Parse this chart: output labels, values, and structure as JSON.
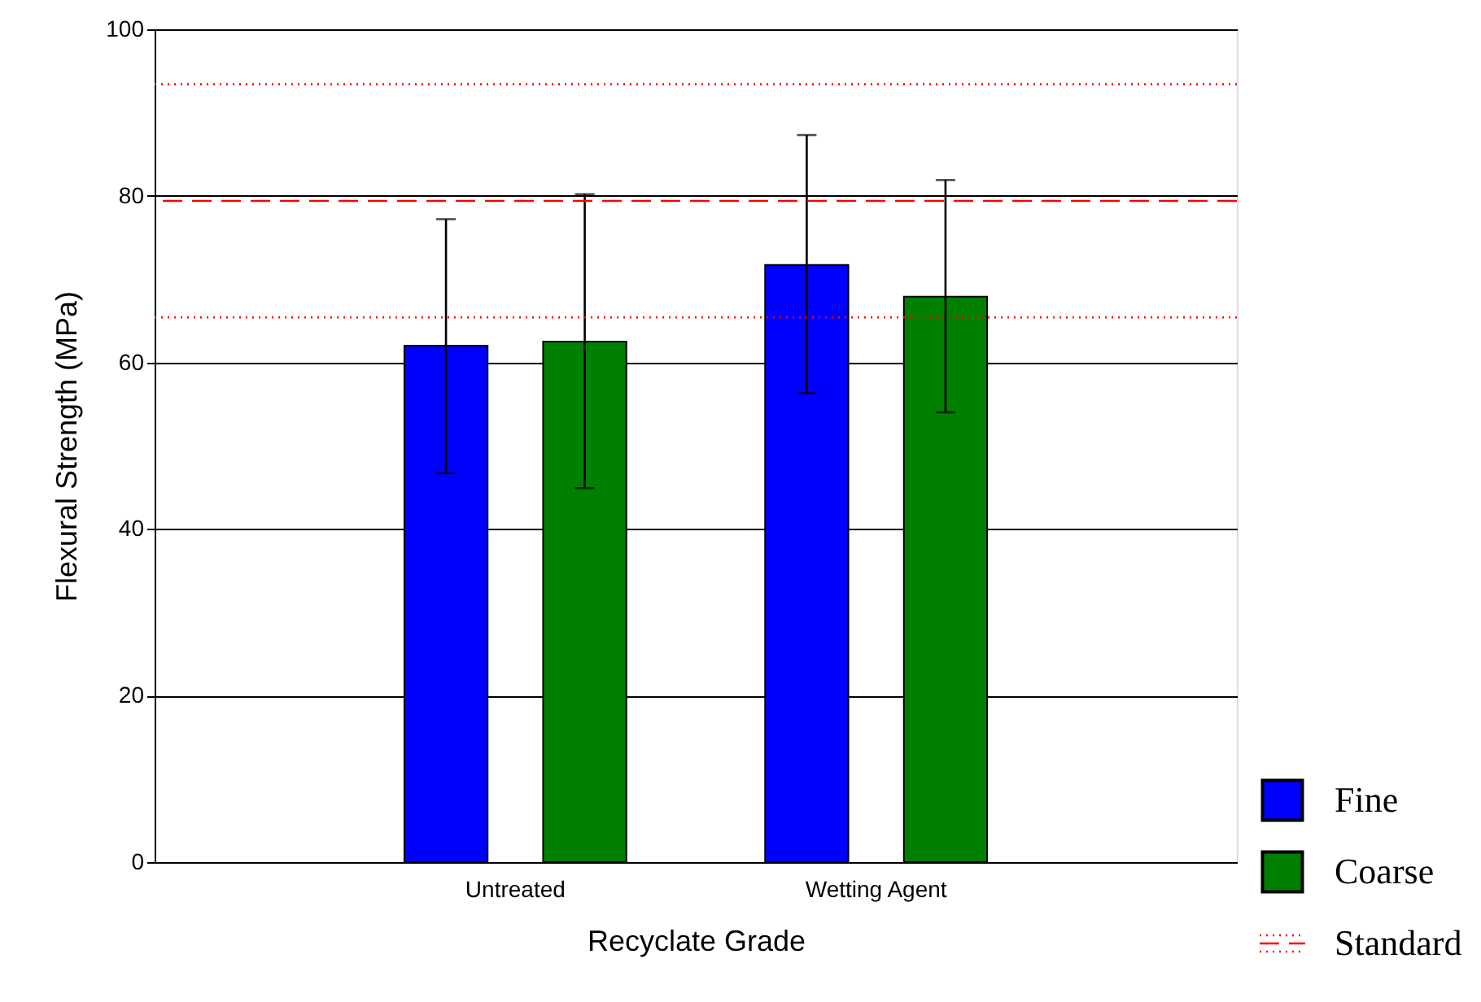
{
  "chart_data": {
    "type": "bar",
    "xlabel": "Recyclate Grade",
    "ylabel": "Flexural Strength (MPa)",
    "categories": [
      "Untreated",
      "Wetting Agent"
    ],
    "series": [
      {
        "name": "Fine",
        "color": "#0000ff",
        "values": [
          62.0,
          71.7
        ],
        "errors": [
          [
            46.7,
            77.2
          ],
          [
            56.3,
            87.3
          ]
        ]
      },
      {
        "name": "Coarse",
        "color": "#008000",
        "values": [
          62.5,
          67.9
        ],
        "errors": [
          [
            44.9,
            80.2
          ],
          [
            54.0,
            81.9
          ]
        ]
      }
    ],
    "ylim": [
      0,
      100
    ],
    "yticks": [
      0,
      20,
      40,
      60,
      80,
      100
    ],
    "grid": "y",
    "legend": "bottom right",
    "ref_lines": [
      {
        "axis": "y",
        "value": 79.4,
        "label": "Standard",
        "color": "#ff0000",
        "line_style": "dashed"
      },
      {
        "axis": "y",
        "value": 93.4,
        "color": "#ff0000",
        "line_style": "dotted"
      },
      {
        "axis": "y",
        "value": 65.4,
        "color": "#ff0000",
        "line_style": "dotted"
      }
    ]
  }
}
